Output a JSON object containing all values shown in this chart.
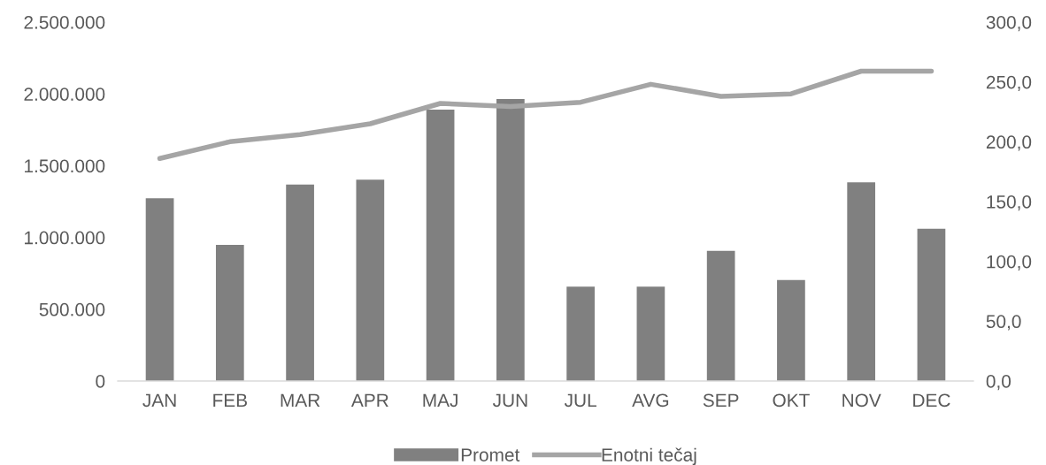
{
  "chart_data": {
    "type": "bar",
    "categories": [
      "JAN",
      "FEB",
      "MAR",
      "APR",
      "MAJ",
      "JUN",
      "JUL",
      "AVG",
      "SEP",
      "OKT",
      "NOV",
      "DEC"
    ],
    "series": [
      {
        "name": "Promet",
        "color": "#808080",
        "values": [
          1273000,
          948000,
          1368000,
          1403000,
          1891000,
          1965000,
          657000,
          658000,
          906000,
          704000,
          1384000,
          1060000
        ]
      },
      {
        "name": "Enotni tečaj",
        "type": "line",
        "axis": "y2",
        "color": "#a5a5a5",
        "values": [
          186,
          200,
          206,
          215,
          232,
          229.5,
          233,
          248,
          238,
          240,
          259,
          259
        ]
      }
    ],
    "ylim": [
      0,
      2500000
    ],
    "yticks": [
      {
        "value": 0,
        "label": "0"
      },
      {
        "value": 500000,
        "label": "500.000"
      },
      {
        "value": 1000000,
        "label": "1.000.000"
      },
      {
        "value": 1500000,
        "label": "1.500.000"
      },
      {
        "value": 2000000,
        "label": "2.000.000"
      },
      {
        "value": 2500000,
        "label": "2.500.000"
      }
    ],
    "y2lim": [
      0,
      300
    ],
    "y2ticks": [
      {
        "value": 0,
        "label": "0,0"
      },
      {
        "value": 50,
        "label": "50,0"
      },
      {
        "value": 100,
        "label": "100,0"
      },
      {
        "value": 150,
        "label": "150,0"
      },
      {
        "value": 200,
        "label": "200,0"
      },
      {
        "value": 250,
        "label": "250,0"
      },
      {
        "value": 300,
        "label": "300,0"
      }
    ],
    "grid": false,
    "legend": "bottom",
    "marker": "none"
  }
}
